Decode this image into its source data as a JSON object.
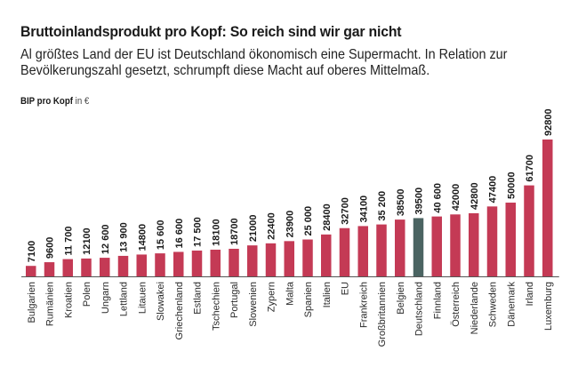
{
  "header": {
    "title": "Bruttoinlandsprodukt pro Kopf: So reich sind wir gar nicht",
    "subtitle": "Al größtes Land der EU ist Deutschland ökonomisch eine Supermacht. In Relation zur Bevölkerungszahl gesetzt, schrumpft diese Macht auf oberes Mittelmaß.",
    "unit_label_bold": "BIP pro Kopf",
    "unit_label_light": "in €"
  },
  "colors": {
    "bar": "#c43a55",
    "highlight": "#4b6462",
    "axis": "#555555"
  },
  "chart_data": {
    "type": "bar",
    "title": "Bruttoinlandsprodukt pro Kopf: So reich sind wir gar nicht",
    "ylabel": "BIP pro Kopf in €",
    "xlabel": "",
    "ylim": [
      0,
      92800
    ],
    "grid": false,
    "highlight": "Deutschland",
    "categories": [
      "Bulgarien",
      "Rumänien",
      "Kroatien",
      "Polen",
      "Ungarn",
      "Lettland",
      "Litauen",
      "Slowakei",
      "Griechenland",
      "Estland",
      "Tschechien",
      "Portugal",
      "Slowenien",
      "Zypern",
      "Malta",
      "Spanien",
      "Italien",
      "EU",
      "Frankreich",
      "Großbritannien",
      "Belgien",
      "Deutschland",
      "Finnland",
      "Österreich",
      "Niederlande",
      "Schweden",
      "Dänemark",
      "Irland",
      "Luxemburg"
    ],
    "values": [
      7100,
      9600,
      11700,
      12100,
      12600,
      13900,
      14800,
      15600,
      16600,
      17500,
      18100,
      18700,
      21000,
      22400,
      23900,
      25000,
      28400,
      32700,
      34100,
      35200,
      38500,
      39500,
      40600,
      42000,
      42800,
      47400,
      50000,
      61700,
      92800
    ],
    "value_labels": [
      "7100",
      "9600",
      "11 700",
      "12100",
      "12 600",
      "13 900",
      "14800",
      "15 600",
      "16 600",
      "17 500",
      "18100",
      "18700",
      "21000",
      "22400",
      "23900",
      "25 000",
      "28400",
      "32700",
      "34100",
      "35 200",
      "38500",
      "39500",
      "40 600",
      "42000",
      "42800",
      "47400",
      "50000",
      "61700",
      "92800"
    ]
  }
}
